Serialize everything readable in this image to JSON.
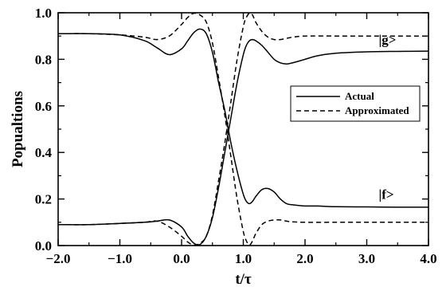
{
  "chart_data": {
    "type": "line",
    "title": "",
    "xlabel": "t/τ",
    "ylabel": "Popualtions",
    "xlim": [
      -2.0,
      4.0
    ],
    "ylim": [
      0.0,
      1.0
    ],
    "x_ticks": [
      -2.0,
      -1.0,
      0.0,
      1.0,
      2.0,
      3.0,
      4.0
    ],
    "x_tick_labels": [
      "−2.0",
      "−1.0",
      "0.0",
      "1.0",
      "2.0",
      "3.0",
      "4.0"
    ],
    "y_ticks": [
      0.0,
      0.2,
      0.4,
      0.6,
      0.8,
      1.0
    ],
    "y_tick_labels": [
      "0.0",
      "0.2",
      "0.4",
      "0.6",
      "0.8",
      "1.0"
    ],
    "grid": false,
    "legend": {
      "position": "right",
      "entries": [
        {
          "label": "Actual",
          "style": "solid"
        },
        {
          "label": "Approximated",
          "style": "dashed"
        }
      ]
    },
    "annotations": [
      {
        "text": "|g>",
        "x": 3.0,
        "y": 0.865
      },
      {
        "text": "|f>",
        "x": 3.0,
        "y": 0.2
      }
    ],
    "series": [
      {
        "style": "solid",
        "x": [
          -2.0,
          -1.5,
          -1.0,
          -0.6,
          -0.4,
          -0.2,
          0.0,
          0.1,
          0.2,
          0.3,
          0.4,
          0.5,
          0.6,
          0.7,
          0.8,
          0.9,
          1.0,
          1.05,
          1.1,
          1.15,
          1.2,
          1.3,
          1.4,
          1.5,
          1.6,
          1.7,
          1.8,
          2.0,
          2.2,
          2.5,
          3.0,
          3.5,
          4.0
        ],
        "y": [
          0.91,
          0.91,
          0.905,
          0.88,
          0.85,
          0.82,
          0.845,
          0.88,
          0.915,
          0.93,
          0.91,
          0.83,
          0.7,
          0.58,
          0.44,
          0.32,
          0.22,
          0.19,
          0.18,
          0.19,
          0.21,
          0.24,
          0.245,
          0.23,
          0.2,
          0.18,
          0.175,
          0.17,
          0.17,
          0.167,
          0.166,
          0.165,
          0.165
        ],
        "values_note_series": "|f> population (actual)"
      },
      {
        "style": "solid",
        "x": [
          -2.0,
          -1.5,
          -1.0,
          -0.6,
          -0.4,
          -0.2,
          0.0,
          0.1,
          0.2,
          0.3,
          0.4,
          0.5,
          0.6,
          0.7,
          0.8,
          0.9,
          1.0,
          1.05,
          1.1,
          1.15,
          1.2,
          1.3,
          1.4,
          1.5,
          1.6,
          1.7,
          1.8,
          2.0,
          2.2,
          2.5,
          3.0,
          3.5,
          4.0
        ],
        "y": [
          0.09,
          0.09,
          0.095,
          0.1,
          0.105,
          0.11,
          0.08,
          0.04,
          0.01,
          0.005,
          0.04,
          0.12,
          0.25,
          0.4,
          0.55,
          0.7,
          0.82,
          0.86,
          0.88,
          0.885,
          0.88,
          0.86,
          0.83,
          0.8,
          0.785,
          0.78,
          0.785,
          0.8,
          0.815,
          0.826,
          0.832,
          0.834,
          0.835
        ],
        "values_note_series": "|g> population (actual)"
      },
      {
        "style": "dashed",
        "x": [
          -2.0,
          -1.5,
          -1.0,
          -0.6,
          -0.4,
          -0.2,
          0.0,
          0.1,
          0.2,
          0.3,
          0.4,
          0.5,
          0.6,
          0.7,
          0.8,
          0.9,
          1.0,
          1.05,
          1.1,
          1.15,
          1.2,
          1.3,
          1.4,
          1.5,
          1.6,
          1.7,
          1.8,
          2.0,
          2.5,
          3.0,
          3.5,
          4.0
        ],
        "y": [
          0.91,
          0.91,
          0.905,
          0.895,
          0.885,
          0.9,
          0.95,
          0.98,
          0.998,
          0.99,
          0.96,
          0.87,
          0.72,
          0.56,
          0.38,
          0.2,
          0.06,
          0.02,
          0.002,
          0.02,
          0.05,
          0.09,
          0.105,
          0.11,
          0.11,
          0.105,
          0.102,
          0.1,
          0.1,
          0.1,
          0.1,
          0.1
        ]
      },
      {
        "style": "dashed",
        "x": [
          -2.0,
          -1.5,
          -1.0,
          -0.6,
          -0.4,
          -0.2,
          0.0,
          0.1,
          0.2,
          0.3,
          0.4,
          0.5,
          0.6,
          0.7,
          0.8,
          0.9,
          1.0,
          1.05,
          1.1,
          1.15,
          1.2,
          1.3,
          1.4,
          1.5,
          1.6,
          1.7,
          1.8,
          2.0,
          2.5,
          3.0,
          3.5,
          4.0
        ],
        "y": [
          0.09,
          0.09,
          0.095,
          0.1,
          0.105,
          0.08,
          0.04,
          0.015,
          0.002,
          0.01,
          0.04,
          0.13,
          0.28,
          0.44,
          0.62,
          0.8,
          0.94,
          0.98,
          0.998,
          0.99,
          0.96,
          0.92,
          0.895,
          0.885,
          0.885,
          0.89,
          0.895,
          0.9,
          0.9,
          0.9,
          0.9,
          0.9
        ]
      }
    ]
  }
}
